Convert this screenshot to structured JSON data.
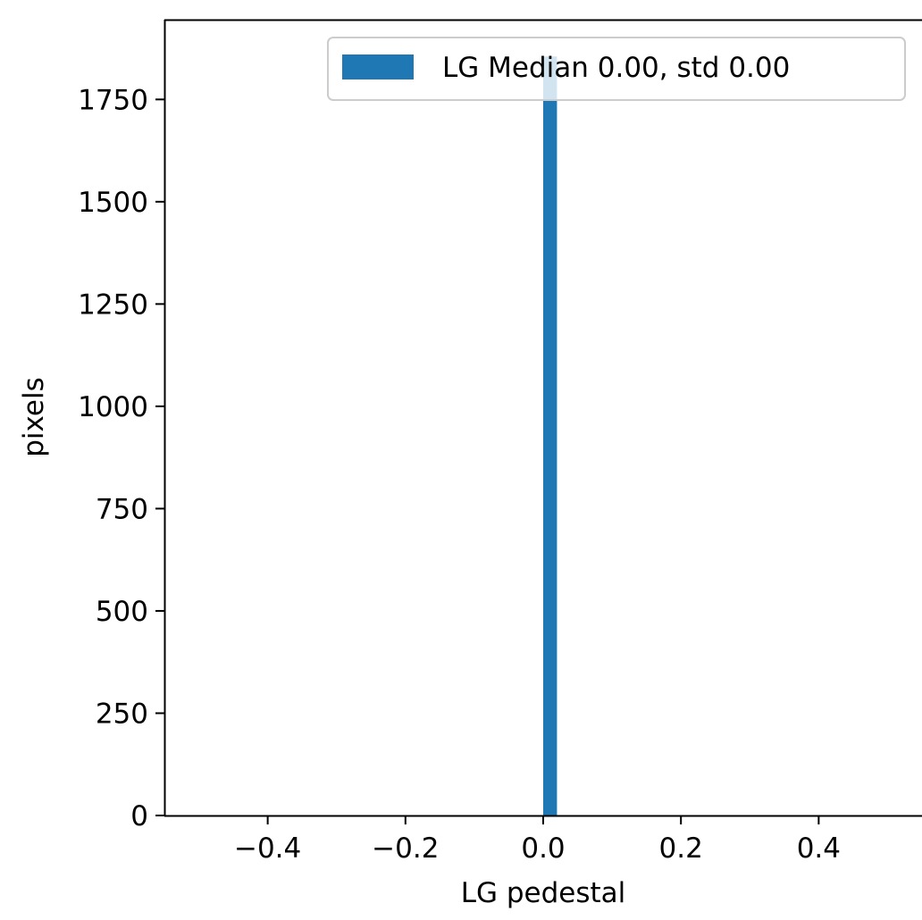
{
  "chart_data": {
    "type": "bar",
    "xlabel": "LG pedestal",
    "ylabel": "pixels",
    "xlim": [
      -0.55,
      0.55
    ],
    "ylim": [
      0,
      1945
    ],
    "x_ticks": [
      -0.4,
      -0.2,
      0.0,
      0.2,
      0.4
    ],
    "x_tick_labels": [
      "−0.4",
      "−0.2",
      "0.0",
      "0.2",
      "0.4"
    ],
    "y_ticks": [
      0,
      250,
      500,
      750,
      1000,
      1250,
      1500,
      1750
    ],
    "y_tick_labels": [
      "0",
      "250",
      "500",
      "750",
      "1000",
      "1250",
      "1500",
      "1750"
    ],
    "grid": false,
    "legend_position": "top-right",
    "series": [
      {
        "name": "LG Median 0.00, std 0.00",
        "color": "#1f77b4",
        "bins": [
          {
            "x_start": 0.0,
            "x_end": 0.02,
            "value": 1855
          }
        ]
      }
    ]
  }
}
